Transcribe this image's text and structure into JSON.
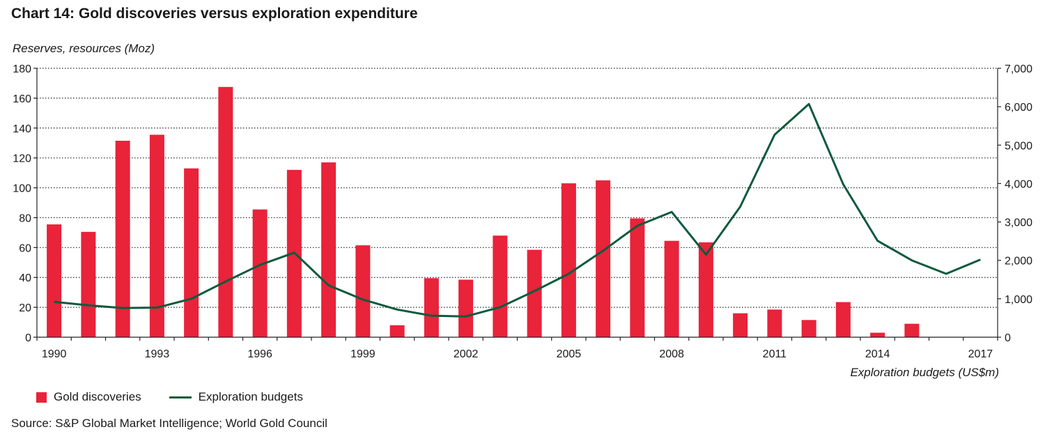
{
  "chart_data": {
    "type": "bar",
    "title": "Chart 14: Gold discoveries versus exploration expenditure",
    "ylabel": "Reserves, resources (Moz)",
    "y2label": "Exploration budgets (US$m)",
    "source": "Source: S&P Global Market Intelligence; World Gold Council",
    "categories": [
      "1990",
      "1991",
      "1992",
      "1993",
      "1994",
      "1995",
      "1996",
      "1997",
      "1998",
      "1999",
      "2000",
      "2001",
      "2002",
      "2003",
      "2004",
      "2005",
      "2006",
      "2007",
      "2008",
      "2009",
      "2010",
      "2011",
      "2012",
      "2013",
      "2014",
      "2015",
      "2016",
      "2017"
    ],
    "xtick_labels": [
      "1990",
      "1993",
      "1996",
      "1999",
      "2002",
      "2005",
      "2008",
      "2011",
      "2014",
      "2017"
    ],
    "ylim": [
      0,
      180
    ],
    "yticks": [
      0,
      20,
      40,
      60,
      80,
      100,
      120,
      140,
      160,
      180
    ],
    "ytick_labels": [
      "0",
      "20",
      "40",
      "60",
      "80",
      "100",
      "120",
      "140",
      "160",
      "180"
    ],
    "y2lim": [
      0,
      7000
    ],
    "y2ticks": [
      0,
      1000,
      2000,
      3000,
      4000,
      5000,
      6000,
      7000
    ],
    "y2tick_labels": [
      "0",
      "1,000",
      "2,000",
      "3,000",
      "4,000",
      "5,000",
      "6,000",
      "7,000"
    ],
    "grid": true,
    "legend_position": "bottom-left",
    "series": [
      {
        "name": "Gold discoveries",
        "kind": "bar",
        "axis": "left",
        "color": "#e8233a",
        "values": [
          75.5,
          70.5,
          131.5,
          135.5,
          113,
          167.5,
          85.5,
          112,
          117,
          61.5,
          8,
          39.5,
          38.5,
          68,
          58.5,
          103,
          105,
          79.5,
          64.5,
          63.5,
          16,
          18.5,
          11.5,
          23.5,
          3,
          9,
          null,
          null
        ]
      },
      {
        "name": "Exploration budgets",
        "kind": "line",
        "axis": "right",
        "color": "#0d5a3c",
        "values": [
          920,
          830,
          760,
          770,
          1000,
          1450,
          1880,
          2200,
          1350,
          980,
          720,
          560,
          540,
          780,
          1200,
          1650,
          2250,
          2900,
          3260,
          2150,
          3400,
          5270,
          6070,
          3980,
          2510,
          2000,
          1650,
          2020
        ]
      }
    ]
  }
}
